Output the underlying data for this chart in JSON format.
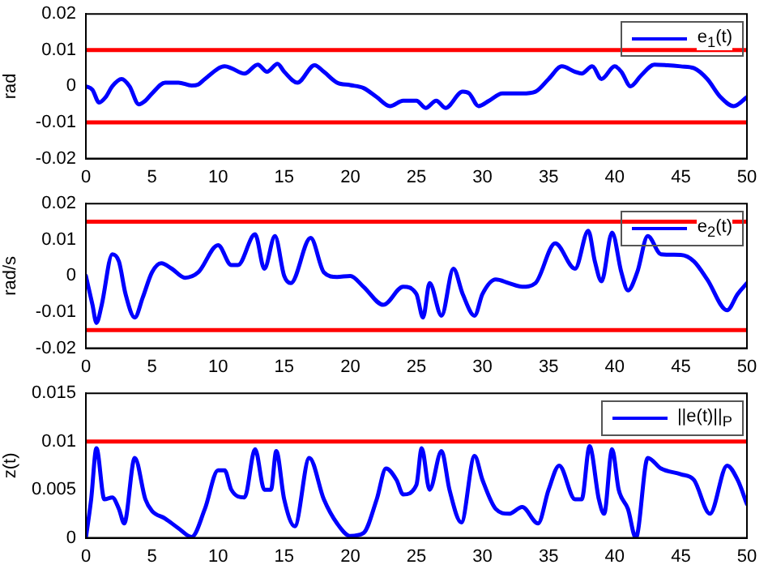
{
  "chart_data": [
    {
      "type": "line",
      "ylabel": "rad",
      "legend": "top right",
      "marker": "none",
      "line_style": "solid",
      "grid": false,
      "xlim": [
        0,
        50
      ],
      "xticks": [
        0,
        5,
        10,
        15,
        20,
        25,
        30,
        35,
        40,
        45,
        50
      ],
      "ylim": [
        -0.02,
        0.02
      ],
      "yticks": [
        -0.02,
        -0.01,
        0,
        0.01,
        0.02
      ],
      "ref_lines": [
        {
          "axis": "y",
          "value": 0.01,
          "color": "#ff0000"
        },
        {
          "axis": "y",
          "value": -0.01,
          "color": "#ff0000"
        }
      ],
      "series": [
        {
          "name": "e$_{1}$(t)",
          "color": "#0000ff",
          "x": [
            0,
            0.5,
            1,
            1.5,
            2,
            2.7,
            3.3,
            4,
            4.5,
            5,
            6,
            7,
            8,
            8.5,
            9,
            10.5,
            11,
            12,
            13,
            13.7,
            14.5,
            15,
            16,
            17.3,
            18,
            19,
            20,
            21,
            22,
            23,
            24,
            25,
            25.7,
            26.5,
            27.2,
            28.5,
            29,
            29.7,
            30.5,
            31.5,
            33,
            34,
            35,
            36,
            37,
            37.5,
            38.3,
            39,
            40,
            40.5,
            41.2,
            42,
            43,
            44,
            45,
            46,
            47,
            48,
            49,
            50
          ],
          "values": [
            0,
            -0.001,
            -0.0045,
            -0.003,
            0,
            0.002,
            0,
            -0.005,
            -0.004,
            -0.002,
            0.001,
            0.001,
            0.0002,
            0.0005,
            0.002,
            0.0055,
            0.005,
            0.0035,
            0.006,
            0.004,
            0.0062,
            0.004,
            0.001,
            0.0058,
            0.004,
            0.001,
            0.0003,
            -0.0005,
            -0.003,
            -0.0055,
            -0.004,
            -0.004,
            -0.006,
            -0.004,
            -0.006,
            -0.0015,
            -0.002,
            -0.0055,
            -0.004,
            -0.002,
            -0.002,
            -0.0015,
            0.002,
            0.0055,
            0.004,
            0.0035,
            0.0055,
            0.002,
            0.0055,
            0.004,
            0,
            0.003,
            0.006,
            0.0058,
            0.0055,
            0.005,
            0.002,
            -0.003,
            -0.0055,
            -0.003
          ]
        }
      ]
    },
    {
      "type": "line",
      "ylabel": "rad/s",
      "legend": "top right",
      "marker": "none",
      "line_style": "solid",
      "grid": false,
      "xlim": [
        0,
        50
      ],
      "xticks": [
        0,
        5,
        10,
        15,
        20,
        25,
        30,
        35,
        40,
        45,
        50
      ],
      "ylim": [
        -0.02,
        0.02
      ],
      "yticks": [
        -0.02,
        -0.01,
        0,
        0.01,
        0.02
      ],
      "ref_lines": [
        {
          "axis": "y",
          "value": 0.015,
          "color": "#ff0000"
        },
        {
          "axis": "y",
          "value": -0.015,
          "color": "#ff0000"
        }
      ],
      "series": [
        {
          "name": "e$_{2}$(t)",
          "color": "#0000ff",
          "x": [
            0,
            0.5,
            0.8,
            1.2,
            2,
            2.5,
            3,
            3.7,
            4.3,
            5,
            5.7,
            6.5,
            7.5,
            8.5,
            10,
            11,
            11.5,
            12.8,
            13.5,
            14.3,
            15,
            15.5,
            17,
            18,
            19,
            20,
            21,
            22.5,
            24,
            25,
            25.5,
            26,
            26.9,
            27.8,
            28.5,
            29.4,
            30,
            31,
            32,
            33,
            34,
            35.5,
            37,
            38,
            38.5,
            39,
            39.8,
            40.5,
            41,
            41.7,
            42.5,
            43.5,
            45,
            46,
            47,
            48.5,
            49.3,
            50
          ],
          "values": [
            0,
            -0.008,
            -0.013,
            -0.008,
            0.006,
            0.004,
            -0.005,
            -0.0115,
            -0.006,
            0.001,
            0.0035,
            0.002,
            -0.0005,
            0.001,
            0.0085,
            0.003,
            0.003,
            0.0115,
            0.002,
            0.011,
            0,
            -0.002,
            0.0105,
            0.001,
            -0.0003,
            0,
            -0.003,
            -0.008,
            -0.003,
            -0.005,
            -0.0115,
            -0.002,
            -0.011,
            0.002,
            -0.005,
            -0.011,
            -0.005,
            -0.001,
            -0.002,
            -0.003,
            -0.002,
            0.009,
            0.002,
            0.0125,
            0.004,
            -0.0015,
            0.012,
            0.001,
            -0.004,
            0.001,
            0.011,
            0.006,
            0.0058,
            0.004,
            -0.001,
            -0.0095,
            -0.005,
            -0.002
          ]
        }
      ]
    },
    {
      "type": "line",
      "ylabel": "z(t)",
      "legend": "top right",
      "marker": "none",
      "line_style": "solid",
      "grid": false,
      "xlim": [
        0,
        50
      ],
      "xticks": [
        0,
        5,
        10,
        15,
        20,
        25,
        30,
        35,
        40,
        45,
        50
      ],
      "ylim": [
        0,
        0.015
      ],
      "yticks": [
        0,
        0.005,
        0.01,
        0.015
      ],
      "ref_lines": [
        {
          "axis": "y",
          "value": 0.01,
          "color": "#ff0000"
        }
      ],
      "series": [
        {
          "name": "||e(t)||$_{P}$",
          "color": "#0000ff",
          "x": [
            0,
            0.4,
            0.8,
            1.4,
            2,
            2.5,
            2.9,
            3.7,
            4.5,
            5,
            6,
            7,
            8,
            9,
            10,
            10.5,
            11,
            12,
            12.8,
            13.5,
            14,
            14.4,
            15,
            15.8,
            16.9,
            18,
            19,
            20,
            21,
            22,
            22.7,
            23.5,
            24,
            25,
            25.4,
            26,
            26.9,
            27.5,
            28.4,
            29.4,
            30,
            31,
            32,
            33,
            34.2,
            35,
            35.8,
            37,
            37.5,
            38.1,
            38.8,
            39.2,
            39.8,
            40.3,
            41,
            41.6,
            42.5,
            43.5,
            45,
            46,
            47.2,
            48.5,
            49.3,
            50
          ],
          "values": [
            0,
            0.004,
            0.0093,
            0.004,
            0.0042,
            0.003,
            0.0015,
            0.0083,
            0.004,
            0.0028,
            0.002,
            0.001,
            0.0001,
            0.003,
            0.007,
            0.007,
            0.005,
            0.0042,
            0.0092,
            0.005,
            0.005,
            0.009,
            0.004,
            0.0012,
            0.0083,
            0.004,
            0.0015,
            0.0002,
            0.0005,
            0.004,
            0.0072,
            0.006,
            0.0045,
            0.0055,
            0.0093,
            0.005,
            0.009,
            0.005,
            0.0016,
            0.0085,
            0.006,
            0.003,
            0.0025,
            0.0032,
            0.0015,
            0.005,
            0.0075,
            0.004,
            0.004,
            0.0095,
            0.004,
            0.0025,
            0.0092,
            0.005,
            0.003,
            0,
            0.0083,
            0.0072,
            0.0066,
            0.006,
            0.0025,
            0.0075,
            0.006,
            0.0035
          ]
        }
      ]
    }
  ]
}
